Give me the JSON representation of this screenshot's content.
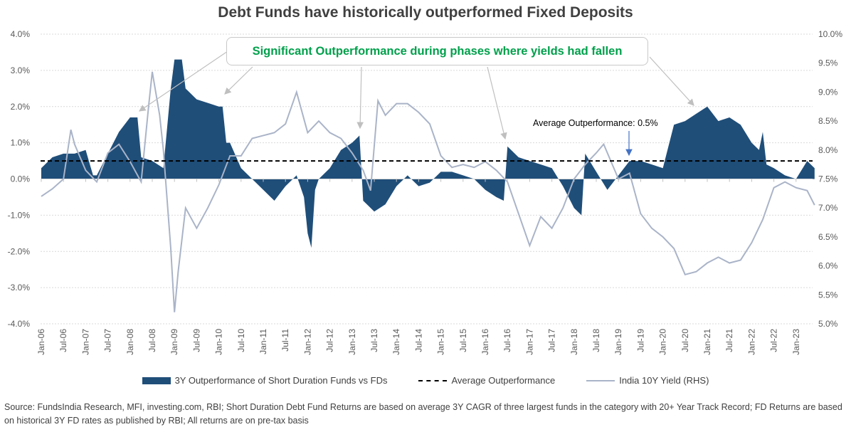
{
  "title": "Debt Funds have historically outperformed Fixed Deposits",
  "callout": "Significant Outperformance during phases where yields had fallen",
  "avg_note": "Average Outperformance: 0.5%",
  "legend": [
    "3Y Outperformance of Short Duration Funds vs FDs",
    "Average Outperformance",
    "India 10Y Yield (RHS)"
  ],
  "source": "Source: FundsIndia Research, MFI, investing.com, RBI; Short Duration Debt Fund Returns are based on average 3Y CAGR of three largest funds in the category with 20+ Year Track Record; FD Returns are based on historical 3Y FD rates as published by RBI; All returns are on pre-tax basis",
  "colors": {
    "area": "#1f4e79",
    "yield": "#aab4c8",
    "callout_text": "#00a04b",
    "avg_arrow": "#4472c4"
  },
  "chart_data": {
    "type": "area+line",
    "title": "Debt Funds have historically outperformed Fixed Deposits",
    "x_tick_labels": [
      "Jan-06",
      "Jul-06",
      "Jan-07",
      "Jul-07",
      "Jan-08",
      "Jul-08",
      "Jan-09",
      "Jul-09",
      "Jan-10",
      "Jul-10",
      "Jan-11",
      "Jul-11",
      "Jan-12",
      "Jul-12",
      "Jan-13",
      "Jul-13",
      "Jan-14",
      "Jul-14",
      "Jan-15",
      "Jul-15",
      "Jan-16",
      "Jul-16",
      "Jan-17",
      "Jul-17",
      "Jan-18",
      "Jul-18",
      "Jan-19",
      "Jul-19",
      "Jan-20",
      "Jul-20",
      "Jan-21",
      "Jul-21",
      "Jan-22",
      "Jul-22",
      "Jan-23"
    ],
    "y_left": {
      "ticks": [
        "-4.0%",
        "-3.0%",
        "-2.0%",
        "-1.0%",
        "0.0%",
        "1.0%",
        "2.0%",
        "3.0%",
        "4.0%"
      ],
      "range": [
        -4,
        4
      ]
    },
    "y_right": {
      "ticks": [
        "5.0%",
        "5.5%",
        "6.0%",
        "6.5%",
        "7.0%",
        "7.5%",
        "8.0%",
        "8.5%",
        "9.0%",
        "9.5%",
        "10.0%"
      ],
      "range": [
        5,
        10
      ]
    },
    "grid": "horizontal dotted",
    "legend_position": "bottom",
    "average_outperformance": 0.5,
    "series": [
      {
        "name": "3Y Outperformance of Short Duration Funds vs FDs",
        "axis": "left",
        "kind": "area",
        "points": [
          [
            "2006-01",
            0.3
          ],
          [
            "2006-04",
            0.6
          ],
          [
            "2006-07",
            0.7
          ],
          [
            "2006-10",
            0.7
          ],
          [
            "2007-01",
            0.8
          ],
          [
            "2007-03",
            0.1
          ],
          [
            "2007-04",
            0.1
          ],
          [
            "2007-07",
            0.7
          ],
          [
            "2007-10",
            1.3
          ],
          [
            "2008-01",
            1.7
          ],
          [
            "2008-03",
            1.7
          ],
          [
            "2008-04",
            0.6
          ],
          [
            "2008-07",
            0.5
          ],
          [
            "2008-10",
            0.3
          ],
          [
            "2008-12",
            2.5
          ],
          [
            "2009-01",
            3.3
          ],
          [
            "2009-03",
            3.3
          ],
          [
            "2009-04",
            2.5
          ],
          [
            "2009-07",
            2.2
          ],
          [
            "2009-10",
            2.1
          ],
          [
            "2010-01",
            2.0
          ],
          [
            "2010-02",
            2.0
          ],
          [
            "2010-03",
            1.0
          ],
          [
            "2010-04",
            1.0
          ],
          [
            "2010-07",
            0.3
          ],
          [
            "2010-10",
            0.0
          ],
          [
            "2011-01",
            -0.3
          ],
          [
            "2011-04",
            -0.6
          ],
          [
            "2011-07",
            -0.2
          ],
          [
            "2011-10",
            0.1
          ],
          [
            "2011-12",
            -0.5
          ],
          [
            "2012-01",
            -1.5
          ],
          [
            "2012-02",
            -1.9
          ],
          [
            "2012-03",
            -0.3
          ],
          [
            "2012-04",
            0.0
          ],
          [
            "2012-07",
            0.3
          ],
          [
            "2012-10",
            0.8
          ],
          [
            "2013-01",
            1.0
          ],
          [
            "2013-03",
            1.2
          ],
          [
            "2013-04",
            -0.6
          ],
          [
            "2013-07",
            -0.9
          ],
          [
            "2013-10",
            -0.7
          ],
          [
            "2014-01",
            -0.2
          ],
          [
            "2014-04",
            0.1
          ],
          [
            "2014-07",
            -0.2
          ],
          [
            "2014-10",
            -0.1
          ],
          [
            "2015-01",
            0.2
          ],
          [
            "2015-04",
            0.2
          ],
          [
            "2015-07",
            0.1
          ],
          [
            "2015-10",
            0.0
          ],
          [
            "2016-01",
            -0.3
          ],
          [
            "2016-04",
            -0.5
          ],
          [
            "2016-06",
            -0.6
          ],
          [
            "2016-07",
            0.9
          ],
          [
            "2016-10",
            0.6
          ],
          [
            "2017-01",
            0.5
          ],
          [
            "2017-04",
            0.4
          ],
          [
            "2017-07",
            0.3
          ],
          [
            "2017-10",
            -0.2
          ],
          [
            "2018-01",
            -0.8
          ],
          [
            "2018-03",
            -1.0
          ],
          [
            "2018-04",
            0.7
          ],
          [
            "2018-07",
            0.2
          ],
          [
            "2018-10",
            -0.3
          ],
          [
            "2019-01",
            0.1
          ],
          [
            "2019-04",
            0.5
          ],
          [
            "2019-07",
            0.5
          ],
          [
            "2019-10",
            0.4
          ],
          [
            "2020-01",
            0.3
          ],
          [
            "2020-04",
            1.5
          ],
          [
            "2020-07",
            1.6
          ],
          [
            "2020-10",
            1.8
          ],
          [
            "2021-01",
            2.0
          ],
          [
            "2021-04",
            1.6
          ],
          [
            "2021-07",
            1.7
          ],
          [
            "2021-10",
            1.5
          ],
          [
            "2022-01",
            1.0
          ],
          [
            "2022-03",
            0.8
          ],
          [
            "2022-04",
            1.3
          ],
          [
            "2022-05",
            0.4
          ],
          [
            "2022-07",
            0.3
          ],
          [
            "2022-10",
            0.1
          ],
          [
            "2023-01",
            0.0
          ],
          [
            "2023-04",
            0.5
          ],
          [
            "2023-06",
            0.3
          ]
        ]
      },
      {
        "name": "Average Outperformance",
        "axis": "left",
        "kind": "dashed",
        "value": 0.5
      },
      {
        "name": "India 10Y Yield (RHS)",
        "axis": "right",
        "kind": "line",
        "points": [
          [
            "2006-01",
            7.2
          ],
          [
            "2006-04",
            7.33
          ],
          [
            "2006-07",
            7.5
          ],
          [
            "2006-09",
            8.35
          ],
          [
            "2006-10",
            8.1
          ],
          [
            "2007-01",
            7.65
          ],
          [
            "2007-04",
            7.45
          ],
          [
            "2007-07",
            7.95
          ],
          [
            "2007-10",
            8.1
          ],
          [
            "2008-01",
            7.8
          ],
          [
            "2008-04",
            7.45
          ],
          [
            "2008-06",
            8.75
          ],
          [
            "2008-07",
            9.35
          ],
          [
            "2008-09",
            8.6
          ],
          [
            "2008-10",
            8.0
          ],
          [
            "2008-12",
            6.3
          ],
          [
            "2009-01",
            5.2
          ],
          [
            "2009-02",
            5.9
          ],
          [
            "2009-04",
            7.0
          ],
          [
            "2009-07",
            6.65
          ],
          [
            "2009-10",
            7.0
          ],
          [
            "2010-01",
            7.4
          ],
          [
            "2010-04",
            7.9
          ],
          [
            "2010-07",
            7.9
          ],
          [
            "2010-10",
            8.2
          ],
          [
            "2011-01",
            8.25
          ],
          [
            "2011-04",
            8.3
          ],
          [
            "2011-07",
            8.45
          ],
          [
            "2011-10",
            9.0
          ],
          [
            "2012-01",
            8.3
          ],
          [
            "2012-04",
            8.5
          ],
          [
            "2012-07",
            8.3
          ],
          [
            "2012-10",
            8.2
          ],
          [
            "2013-01",
            7.95
          ],
          [
            "2013-04",
            7.65
          ],
          [
            "2013-06",
            7.3
          ],
          [
            "2013-08",
            8.85
          ],
          [
            "2013-10",
            8.6
          ],
          [
            "2014-01",
            8.8
          ],
          [
            "2014-04",
            8.8
          ],
          [
            "2014-07",
            8.65
          ],
          [
            "2014-10",
            8.45
          ],
          [
            "2015-01",
            7.9
          ],
          [
            "2015-04",
            7.7
          ],
          [
            "2015-07",
            7.75
          ],
          [
            "2015-10",
            7.7
          ],
          [
            "2016-01",
            7.8
          ],
          [
            "2016-04",
            7.65
          ],
          [
            "2016-07",
            7.45
          ],
          [
            "2016-10",
            6.9
          ],
          [
            "2017-01",
            6.35
          ],
          [
            "2017-04",
            6.85
          ],
          [
            "2017-07",
            6.65
          ],
          [
            "2017-10",
            7.0
          ],
          [
            "2018-01",
            7.5
          ],
          [
            "2018-04",
            7.75
          ],
          [
            "2018-07",
            7.95
          ],
          [
            "2018-09",
            8.1
          ],
          [
            "2018-10",
            7.95
          ],
          [
            "2019-01",
            7.5
          ],
          [
            "2019-04",
            7.6
          ],
          [
            "2019-07",
            6.9
          ],
          [
            "2019-10",
            6.65
          ],
          [
            "2020-01",
            6.5
          ],
          [
            "2020-04",
            6.3
          ],
          [
            "2020-07",
            5.85
          ],
          [
            "2020-10",
            5.9
          ],
          [
            "2021-01",
            6.05
          ],
          [
            "2021-04",
            6.15
          ],
          [
            "2021-07",
            6.05
          ],
          [
            "2021-10",
            6.1
          ],
          [
            "2022-01",
            6.4
          ],
          [
            "2022-04",
            6.8
          ],
          [
            "2022-07",
            7.35
          ],
          [
            "2022-10",
            7.45
          ],
          [
            "2023-01",
            7.35
          ],
          [
            "2023-04",
            7.3
          ],
          [
            "2023-06",
            7.05
          ]
        ]
      }
    ]
  }
}
